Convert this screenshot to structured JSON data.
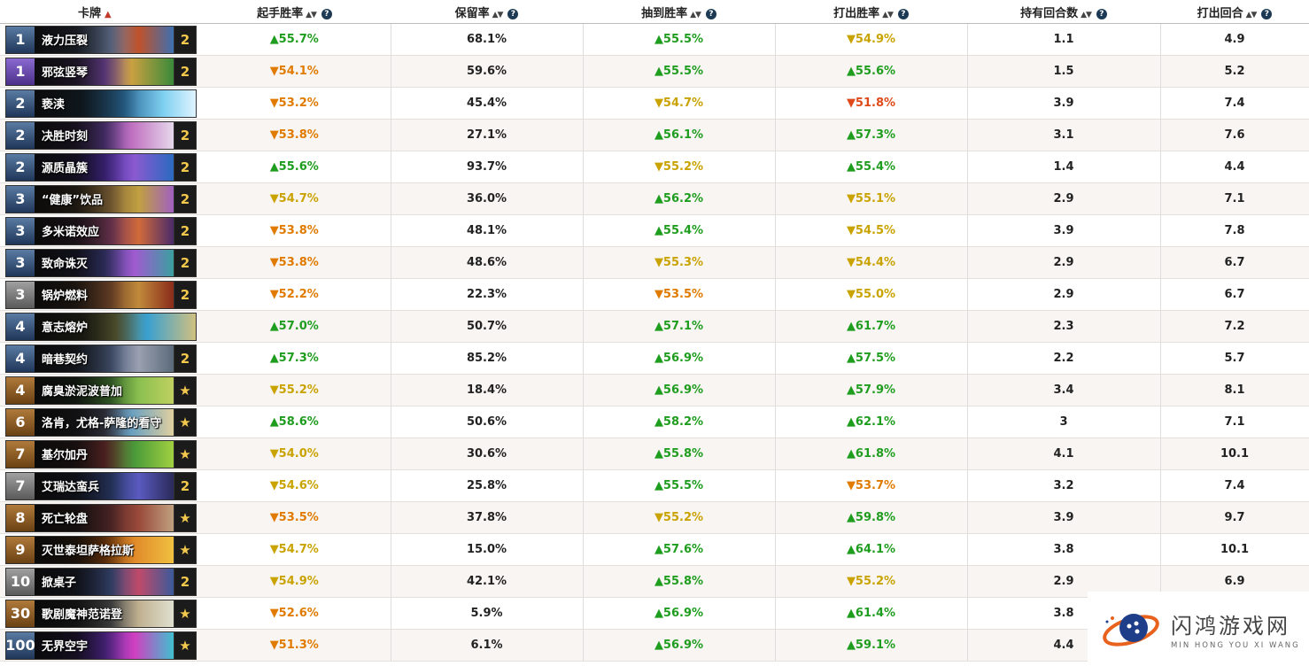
{
  "header": {
    "card": "卡牌",
    "mulligan_wr": "起手胜率",
    "keep_rate": "保留率",
    "drawn_wr": "抽到胜率",
    "played_wr": "打出胜率",
    "turns_held": "持有回合数",
    "turn_played": "打出回合"
  },
  "icons": {
    "sort_active": "caret-up-icon",
    "sort": "sort-arrows-icon",
    "help": "question-circle-icon",
    "watermark_logo": "gamepad-logo-icon",
    "legendary": "star-icon"
  },
  "colors": {
    "up": "#1f9d1f",
    "down_yellow": "#c9a300",
    "down_orange": "#e07b00",
    "down_red": "#e04a1a",
    "help_bg": "#1d3a54"
  },
  "rows": [
    {
      "cost": "1",
      "name": "液力压裂",
      "count": "2",
      "mulligan": "▲55.7%",
      "mt": "up",
      "keep": "68.1%",
      "drawn": "▲55.5%",
      "dt": "up",
      "played": "▼54.9%",
      "pt": "down-y",
      "held": "1.1",
      "turn": "4.9"
    },
    {
      "cost": "1",
      "name": "邪弦竖琴",
      "count": "2",
      "mulligan": "▼54.1%",
      "mt": "down-o",
      "keep": "59.6%",
      "drawn": "▲55.5%",
      "dt": "up",
      "played": "▲55.6%",
      "pt": "up",
      "held": "1.5",
      "turn": "5.2"
    },
    {
      "cost": "2",
      "name": "亵渎",
      "count": "",
      "mulligan": "▼53.2%",
      "mt": "down-o",
      "keep": "45.4%",
      "drawn": "▼54.7%",
      "dt": "down-y",
      "played": "▼51.8%",
      "pt": "down-r",
      "held": "3.9",
      "turn": "7.4"
    },
    {
      "cost": "2",
      "name": "决胜时刻",
      "count": "2",
      "mulligan": "▼53.8%",
      "mt": "down-o",
      "keep": "27.1%",
      "drawn": "▲56.1%",
      "dt": "up",
      "played": "▲57.3%",
      "pt": "up",
      "held": "3.1",
      "turn": "7.6"
    },
    {
      "cost": "2",
      "name": "源质晶簇",
      "count": "2",
      "mulligan": "▲55.6%",
      "mt": "up",
      "keep": "93.7%",
      "drawn": "▼55.2%",
      "dt": "down-y",
      "played": "▲55.4%",
      "pt": "up",
      "held": "1.4",
      "turn": "4.4"
    },
    {
      "cost": "3",
      "name": "“健康”饮品",
      "count": "2",
      "mulligan": "▼54.7%",
      "mt": "down-y",
      "keep": "36.0%",
      "drawn": "▲56.2%",
      "dt": "up",
      "played": "▼55.1%",
      "pt": "down-y",
      "held": "2.9",
      "turn": "7.1"
    },
    {
      "cost": "3",
      "name": "多米诺效应",
      "count": "2",
      "mulligan": "▼53.8%",
      "mt": "down-o",
      "keep": "48.1%",
      "drawn": "▲55.4%",
      "dt": "up",
      "played": "▼54.5%",
      "pt": "down-y",
      "held": "3.9",
      "turn": "7.8"
    },
    {
      "cost": "3",
      "name": "致命诛灭",
      "count": "2",
      "mulligan": "▼53.8%",
      "mt": "down-o",
      "keep": "48.6%",
      "drawn": "▼55.3%",
      "dt": "down-y",
      "played": "▼54.4%",
      "pt": "down-y",
      "held": "2.9",
      "turn": "6.7"
    },
    {
      "cost": "3",
      "name": "锅炉燃料",
      "count": "2",
      "mulligan": "▼52.2%",
      "mt": "down-o",
      "keep": "22.3%",
      "drawn": "▼53.5%",
      "dt": "down-o",
      "played": "▼55.0%",
      "pt": "down-y",
      "held": "2.9",
      "turn": "6.7"
    },
    {
      "cost": "4",
      "name": "意志熔炉",
      "count": "",
      "mulligan": "▲57.0%",
      "mt": "up",
      "keep": "50.7%",
      "drawn": "▲57.1%",
      "dt": "up",
      "played": "▲61.7%",
      "pt": "up",
      "held": "2.3",
      "turn": "7.2"
    },
    {
      "cost": "4",
      "name": "暗巷契约",
      "count": "2",
      "mulligan": "▲57.3%",
      "mt": "up",
      "keep": "85.2%",
      "drawn": "▲56.9%",
      "dt": "up",
      "played": "▲57.5%",
      "pt": "up",
      "held": "2.2",
      "turn": "5.7"
    },
    {
      "cost": "4",
      "name": "腐臭淤泥波普加",
      "count": "★",
      "mulligan": "▼55.2%",
      "mt": "down-y",
      "keep": "18.4%",
      "drawn": "▲56.9%",
      "dt": "up",
      "played": "▲57.9%",
      "pt": "up",
      "held": "3.4",
      "turn": "8.1"
    },
    {
      "cost": "6",
      "name": "洛肯，尤格-萨隆的看守",
      "count": "★",
      "mulligan": "▲58.6%",
      "mt": "up",
      "keep": "50.6%",
      "drawn": "▲58.2%",
      "dt": "up",
      "played": "▲62.1%",
      "pt": "up",
      "held": "3",
      "turn": "7.1"
    },
    {
      "cost": "7",
      "name": "基尔加丹",
      "count": "★",
      "mulligan": "▼54.0%",
      "mt": "down-y",
      "keep": "30.6%",
      "drawn": "▲55.8%",
      "dt": "up",
      "played": "▲61.8%",
      "pt": "up",
      "held": "4.1",
      "turn": "10.1"
    },
    {
      "cost": "7",
      "name": "艾瑞达蛮兵",
      "count": "2",
      "mulligan": "▼54.6%",
      "mt": "down-y",
      "keep": "25.8%",
      "drawn": "▲55.5%",
      "dt": "up",
      "played": "▼53.7%",
      "pt": "down-o",
      "held": "3.2",
      "turn": "7.4"
    },
    {
      "cost": "8",
      "name": "死亡轮盘",
      "count": "★",
      "mulligan": "▼53.5%",
      "mt": "down-o",
      "keep": "37.8%",
      "drawn": "▼55.2%",
      "dt": "down-y",
      "played": "▲59.8%",
      "pt": "up",
      "held": "3.9",
      "turn": "9.7"
    },
    {
      "cost": "9",
      "name": "灭世泰坦萨格拉斯",
      "count": "★",
      "mulligan": "▼54.7%",
      "mt": "down-y",
      "keep": "15.0%",
      "drawn": "▲57.6%",
      "dt": "up",
      "played": "▲64.1%",
      "pt": "up",
      "held": "3.8",
      "turn": "10.1"
    },
    {
      "cost": "10",
      "name": "掀桌子",
      "count": "2",
      "mulligan": "▼54.9%",
      "mt": "down-y",
      "keep": "42.1%",
      "drawn": "▲55.8%",
      "dt": "up",
      "played": "▼55.2%",
      "pt": "down-y",
      "held": "2.9",
      "turn": "6.9"
    },
    {
      "cost": "30",
      "name": "歌剧魔神范诺登",
      "count": "★",
      "mulligan": "▼52.6%",
      "mt": "down-o",
      "keep": "5.9%",
      "drawn": "▲56.9%",
      "dt": "up",
      "played": "▲61.4%",
      "pt": "up",
      "held": "3.8",
      "turn": ""
    },
    {
      "cost": "100",
      "name": "无界空宇",
      "count": "★",
      "mulligan": "▼51.3%",
      "mt": "down-o",
      "keep": "6.1%",
      "drawn": "▲56.9%",
      "dt": "up",
      "played": "▲59.1%",
      "pt": "up",
      "held": "4.4",
      "turn": ""
    }
  ],
  "watermark": {
    "title": "闪鸿游戏网",
    "subtitle": "MIN HONG YOU XI WANG"
  }
}
